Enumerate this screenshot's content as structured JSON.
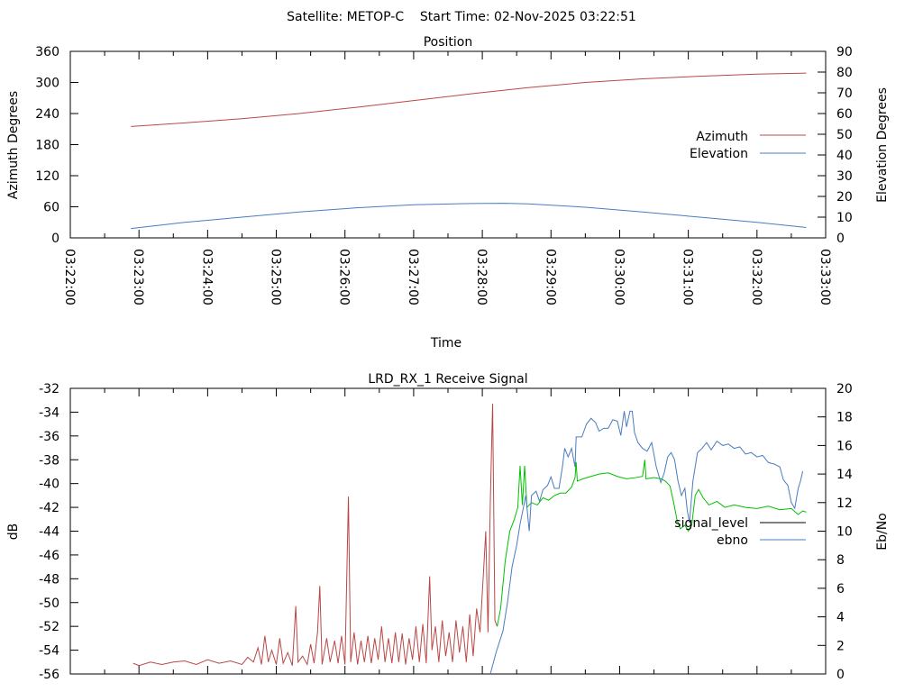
{
  "header": {
    "title": "Satellite: METOP-C    Start Time: 02-Nov-2025 03:22:51"
  },
  "colors": {
    "azimuth": "#b84848",
    "elevation": "#4a7cc0",
    "signal_low": "#b84848",
    "signal_high": "#00c000",
    "ebno": "#4a7cc0",
    "signal_legend": "#000000"
  },
  "chart_data": [
    {
      "type": "line",
      "title": "Position",
      "xlabel": "Time",
      "ylabel": "Azimuth Degrees",
      "y2label": "Elevation Degrees",
      "xlim_seconds": [
        0,
        660
      ],
      "x_origin": "03:22:00",
      "x_ticks": [
        "03:22:00",
        "03:23:00",
        "03:24:00",
        "03:25:00",
        "03:26:00",
        "03:27:00",
        "03:28:00",
        "03:29:00",
        "03:30:00",
        "03:31:00",
        "03:32:00",
        "03:33:00"
      ],
      "ylim": [
        0,
        360
      ],
      "y_ticks": [
        0,
        60,
        120,
        180,
        240,
        300,
        360
      ],
      "y2lim": [
        0,
        90
      ],
      "y2_ticks": [
        0,
        10,
        20,
        30,
        40,
        50,
        60,
        70,
        80,
        90
      ],
      "legend_position": "right",
      "series": [
        {
          "name": "Azimuth",
          "axis": "y",
          "color_key": "azimuth",
          "points": [
            [
              53,
              215
            ],
            [
              100,
              222
            ],
            [
              150,
              230
            ],
            [
              200,
              240
            ],
            [
              250,
              252
            ],
            [
              300,
              265
            ],
            [
              350,
              278
            ],
            [
              400,
              290
            ],
            [
              450,
              300
            ],
            [
              500,
              307
            ],
            [
              550,
              312
            ],
            [
              600,
              316
            ],
            [
              643,
              318
            ]
          ]
        },
        {
          "name": "Elevation",
          "axis": "y2",
          "color_key": "elevation",
          "points": [
            [
              53,
              4.5
            ],
            [
              100,
              7.5
            ],
            [
              150,
              10
            ],
            [
              200,
              12.5
            ],
            [
              250,
              14.5
            ],
            [
              300,
              16
            ],
            [
              350,
              16.6
            ],
            [
              380,
              16.7
            ],
            [
              400,
              16.4
            ],
            [
              450,
              14.8
            ],
            [
              500,
              12.5
            ],
            [
              550,
              10
            ],
            [
              600,
              7.5
            ],
            [
              643,
              5
            ]
          ]
        }
      ]
    },
    {
      "type": "line",
      "title": "LRD_RX_1 Receive Signal",
      "ylabel": "dB",
      "y2label": "Eb/No",
      "xlim_seconds": [
        0,
        660
      ],
      "ylim": [
        -56,
        -32
      ],
      "y_ticks": [
        -56,
        -54,
        -52,
        -50,
        -48,
        -46,
        -44,
        -42,
        -40,
        -38,
        -36,
        -34,
        -32
      ],
      "y2lim": [
        0,
        20
      ],
      "y2_ticks": [
        0,
        2,
        4,
        6,
        8,
        10,
        12,
        14,
        16,
        18,
        20
      ],
      "legend_position": "right",
      "series": [
        {
          "name": "signal_level",
          "axis": "y",
          "color_key": "signal_legend",
          "segment_color_change_at": 373,
          "points": [
            [
              55,
              -55.1
            ],
            [
              60,
              -55.3
            ],
            [
              70,
              -55.0
            ],
            [
              80,
              -55.2
            ],
            [
              90,
              -55.0
            ],
            [
              100,
              -54.9
            ],
            [
              110,
              -55.2
            ],
            [
              120,
              -54.8
            ],
            [
              130,
              -55.1
            ],
            [
              140,
              -54.9
            ],
            [
              150,
              -55.2
            ],
            [
              155,
              -54.6
            ],
            [
              160,
              -55.0
            ],
            [
              164,
              -53.8
            ],
            [
              167,
              -55.2
            ],
            [
              170,
              -52.8
            ],
            [
              173,
              -55
            ],
            [
              176,
              -54
            ],
            [
              180,
              -55.2
            ],
            [
              183,
              -53
            ],
            [
              186,
              -55.1
            ],
            [
              190,
              -54.2
            ],
            [
              194,
              -55.3
            ],
            [
              197,
              -50.3
            ],
            [
              199,
              -55
            ],
            [
              203,
              -54.5
            ],
            [
              207,
              -55.2
            ],
            [
              210,
              -53.5
            ],
            [
              213,
              -55.1
            ],
            [
              216,
              -52.5
            ],
            [
              218,
              -48.6
            ],
            [
              220,
              -55.2
            ],
            [
              224,
              -53
            ],
            [
              227,
              -55
            ],
            [
              231,
              -53.2
            ],
            [
              234,
              -55.1
            ],
            [
              237,
              -52.8
            ],
            [
              240,
              -55.2
            ],
            [
              243,
              -41.1
            ],
            [
              245,
              -55
            ],
            [
              248,
              -52.5
            ],
            [
              251,
              -55.2
            ],
            [
              254,
              -53.2
            ],
            [
              257,
              -55
            ],
            [
              260,
              -52.8
            ],
            [
              263,
              -55.1
            ],
            [
              266,
              -53
            ],
            [
              269,
              -54.8
            ],
            [
              272,
              -52
            ],
            [
              275,
              -55
            ],
            [
              278,
              -53
            ],
            [
              281,
              -55.1
            ],
            [
              284,
              -52.5
            ],
            [
              287,
              -55
            ],
            [
              290,
              -52.6
            ],
            [
              293,
              -55.2
            ],
            [
              296,
              -53
            ],
            [
              299,
              -54.8
            ],
            [
              302,
              -52
            ],
            [
              305,
              -55
            ],
            [
              308,
              -51.8
            ],
            [
              311,
              -55.1
            ],
            [
              314,
              -47.8
            ],
            [
              316,
              -54
            ],
            [
              319,
              -52
            ],
            [
              322,
              -55
            ],
            [
              325,
              -51.5
            ],
            [
              328,
              -54.5
            ],
            [
              331,
              -52.5
            ],
            [
              334,
              -55
            ],
            [
              337,
              -51.5
            ],
            [
              340,
              -54.2
            ],
            [
              343,
              -52
            ],
            [
              346,
              -55
            ],
            [
              349,
              -51
            ],
            [
              352,
              -54.5
            ],
            [
              355,
              -50.5
            ],
            [
              358,
              -52.5
            ],
            [
              361,
              -47.5
            ],
            [
              363,
              -44
            ],
            [
              365,
              -52.5
            ],
            [
              367,
              -41.5
            ],
            [
              369,
              -33.3
            ],
            [
              371,
              -51.5
            ],
            [
              373,
              -52
            ],
            [
              376,
              -50.5
            ],
            [
              380,
              -46.5
            ],
            [
              384,
              -44
            ],
            [
              388,
              -43
            ],
            [
              391,
              -42
            ],
            [
              393,
              -38.5
            ],
            [
              395,
              -41.8
            ],
            [
              397,
              -38.5
            ],
            [
              399,
              -42
            ],
            [
              403,
              -41.6
            ],
            [
              408,
              -41.8
            ],
            [
              413,
              -41.2
            ],
            [
              418,
              -41.4
            ],
            [
              423,
              -41
            ],
            [
              428,
              -40.8
            ],
            [
              433,
              -40.8
            ],
            [
              438,
              -40.3
            ],
            [
              441,
              -39.5
            ],
            [
              442,
              -38.2
            ],
            [
              443,
              -39.8
            ],
            [
              448,
              -39.6
            ],
            [
              455,
              -39.4
            ],
            [
              462,
              -39.2
            ],
            [
              470,
              -39.1
            ],
            [
              478,
              -39.4
            ],
            [
              486,
              -39.6
            ],
            [
              494,
              -39.5
            ],
            [
              500,
              -39.4
            ],
            [
              502,
              -38
            ],
            [
              503,
              -39.6
            ],
            [
              510,
              -39.5
            ],
            [
              516,
              -39.6
            ],
            [
              520,
              -39.8
            ],
            [
              524,
              -40.2
            ],
            [
              527,
              -41.5
            ],
            [
              530,
              -43
            ],
            [
              533,
              -43.8
            ],
            [
              537,
              -43.5
            ],
            [
              540,
              -44
            ],
            [
              543,
              -43.5
            ],
            [
              546,
              -41
            ],
            [
              549,
              -40.5
            ],
            [
              553,
              -41.2
            ],
            [
              558,
              -41.8
            ],
            [
              565,
              -41.5
            ],
            [
              572,
              -42
            ],
            [
              580,
              -41.8
            ],
            [
              590,
              -42
            ],
            [
              600,
              -42.1
            ],
            [
              610,
              -41.9
            ],
            [
              620,
              -42.2
            ],
            [
              630,
              -42.1
            ],
            [
              636,
              -42.6
            ],
            [
              640,
              -42.3
            ],
            [
              643,
              -42.4
            ]
          ]
        },
        {
          "name": "ebno",
          "axis": "y2",
          "color_key": "ebno",
          "points": [
            [
              367,
              0
            ],
            [
              372,
              1.5
            ],
            [
              378,
              3
            ],
            [
              382,
              5
            ],
            [
              386,
              7.5
            ],
            [
              390,
              9
            ],
            [
              393,
              10.5
            ],
            [
              396,
              11.7
            ],
            [
              398,
              12.5
            ],
            [
              401,
              10
            ],
            [
              403,
              12.5
            ],
            [
              407,
              12.8
            ],
            [
              410,
              12.1
            ],
            [
              413,
              12.9
            ],
            [
              417,
              13.2
            ],
            [
              420,
              13.8
            ],
            [
              423,
              13
            ],
            [
              427,
              13
            ],
            [
              430,
              14.5
            ],
            [
              432,
              15.8
            ],
            [
              435,
              15.2
            ],
            [
              438,
              15.8
            ],
            [
              441,
              14.5
            ],
            [
              442,
              16.6
            ],
            [
              447,
              16.6
            ],
            [
              451,
              17.5
            ],
            [
              455,
              17.9
            ],
            [
              459,
              17.6
            ],
            [
              462,
              17
            ],
            [
              466,
              17.2
            ],
            [
              470,
              17.2
            ],
            [
              474,
              17.8
            ],
            [
              478,
              17.7
            ],
            [
              481,
              16.7
            ],
            [
              484,
              18.4
            ],
            [
              486,
              17.3
            ],
            [
              489,
              18.4
            ],
            [
              491,
              18.4
            ],
            [
              493,
              16.9
            ],
            [
              496,
              16.2
            ],
            [
              500,
              15.8
            ],
            [
              504,
              15.6
            ],
            [
              508,
              16.2
            ],
            [
              512,
              14.5
            ],
            [
              516,
              13.4
            ],
            [
              519,
              14.1
            ],
            [
              522,
              15.2
            ],
            [
              525,
              15.5
            ],
            [
              528,
              15
            ],
            [
              531,
              13.5
            ],
            [
              534,
              12.5
            ],
            [
              537,
              13
            ],
            [
              539,
              11.5
            ],
            [
              541,
              10.6
            ],
            [
              544,
              13.5
            ],
            [
              548,
              15.5
            ],
            [
              552,
              15.8
            ],
            [
              556,
              16.2
            ],
            [
              560,
              15.7
            ],
            [
              565,
              16.3
            ],
            [
              570,
              16
            ],
            [
              575,
              16.1
            ],
            [
              580,
              15.8
            ],
            [
              585,
              15.9
            ],
            [
              590,
              15.4
            ],
            [
              595,
              15.5
            ],
            [
              600,
              15.2
            ],
            [
              605,
              15.3
            ],
            [
              610,
              14.8
            ],
            [
              615,
              14.7
            ],
            [
              620,
              14.5
            ],
            [
              623,
              13.6
            ],
            [
              627,
              13.2
            ],
            [
              630,
              12
            ],
            [
              633,
              11.6
            ],
            [
              636,
              13
            ],
            [
              638,
              13.5
            ],
            [
              640,
              14.2
            ]
          ]
        }
      ]
    }
  ]
}
